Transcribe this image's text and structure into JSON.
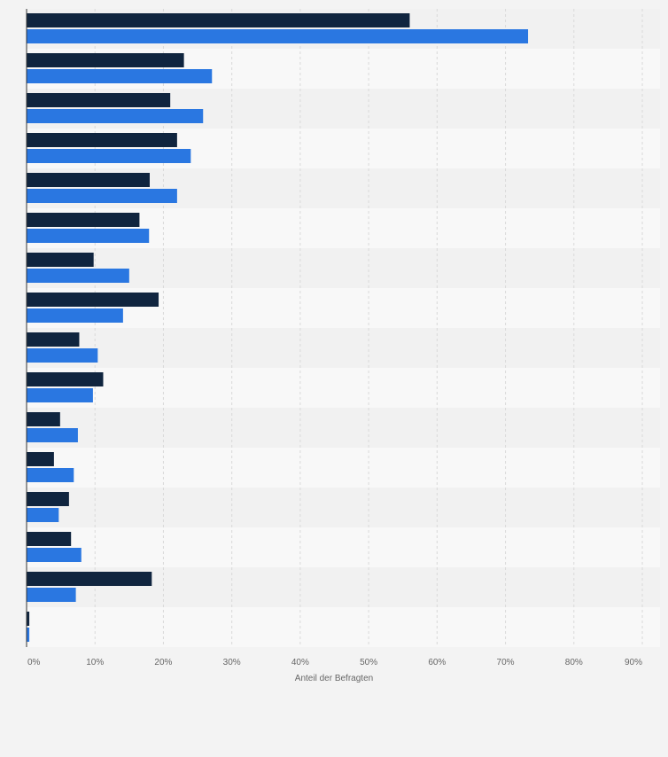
{
  "chart_data": {
    "type": "bar",
    "orientation": "horizontal",
    "title": "",
    "xlabel": "Anteil der Befragten",
    "ylabel": "",
    "xlim": [
      0,
      90
    ],
    "x_ticks": [
      "0%",
      "10%",
      "20%",
      "30%",
      "40%",
      "50%",
      "60%",
      "70%",
      "80%",
      "90%"
    ],
    "categories": [
      "",
      "",
      "",
      "",
      "",
      "",
      "",
      "",
      "",
      "",
      "",
      "",
      "",
      "",
      "",
      ""
    ],
    "series": [
      {
        "color": "#10253f",
        "values": [
          56,
          23,
          21,
          22,
          18,
          16.5,
          9.8,
          19.3,
          7.7,
          11.2,
          4.9,
          4,
          6.2,
          6.5,
          18.3,
          0.4
        ]
      },
      {
        "color": "#2a77e1",
        "values": [
          73.3,
          27.1,
          25.8,
          24,
          22,
          17.9,
          15,
          14.1,
          10.4,
          9.7,
          7.5,
          6.9,
          4.7,
          8,
          7.2,
          0.4
        ]
      }
    ],
    "grid": true,
    "legend": "none"
  },
  "colors": {
    "background": "#f3f3f3",
    "band_light": "#f8f8f8",
    "band_dark": "#f1f1f1",
    "grid": "#d9d9d9",
    "axis": "#333333",
    "tick_text": "#666666"
  }
}
